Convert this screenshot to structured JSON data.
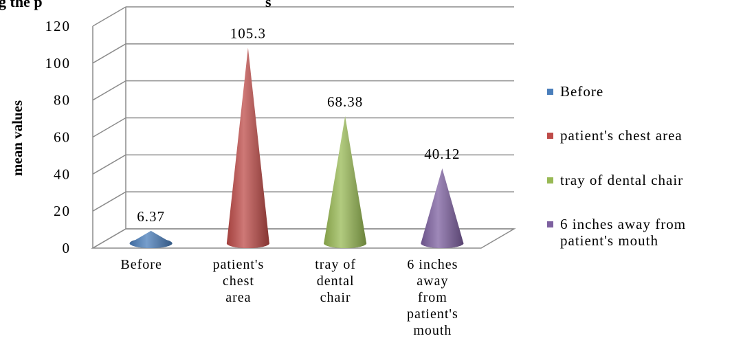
{
  "chart_data": {
    "type": "bar",
    "title": "g the p",
    "title_suffix": "s",
    "xlabel": "",
    "ylabel": "mean values",
    "ylim": [
      0,
      120
    ],
    "yticks": [
      0,
      20,
      40,
      60,
      80,
      100,
      120
    ],
    "grid": true,
    "legend_position": "right",
    "bar_shape": "cone",
    "categories": [
      "Before",
      "patient's chest area",
      "tray of dental chair",
      "6 inches away from patient's mouth"
    ],
    "category_lines": [
      [
        "Before"
      ],
      [
        "patient's",
        "chest",
        "area"
      ],
      [
        "tray of",
        "dental",
        "chair"
      ],
      [
        "6 inches",
        "away",
        "from",
        "patient's",
        "mouth"
      ]
    ],
    "values": [
      6.37,
      105.3,
      68.38,
      40.12
    ],
    "value_labels": [
      "6.37",
      "105.3",
      "68.38",
      "40.12"
    ],
    "series": [
      {
        "name": "Before",
        "color": "#4a7ebb"
      },
      {
        "name": "patient's chest area",
        "color": "#be4b48"
      },
      {
        "name": "tray of dental chair",
        "color": "#98b954"
      },
      {
        "name": "6 inches away from patient's mouth",
        "color": "#7d60a0"
      }
    ],
    "legend_lines": [
      [
        "Before"
      ],
      [
        "patient's chest area"
      ],
      [
        "tray of dental chair"
      ],
      [
        "6 inches away from",
        "patient's mouth"
      ]
    ]
  }
}
